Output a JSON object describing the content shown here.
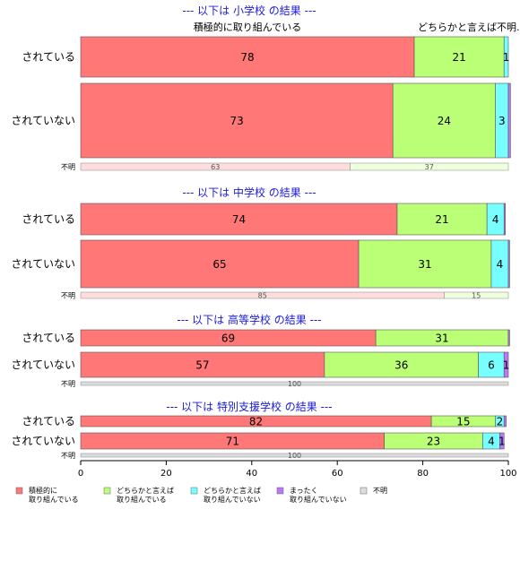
{
  "chart_data": {
    "type": "bar",
    "orientation": "horizontal",
    "stacked": true,
    "xlim": [
      0,
      100
    ],
    "x_ticks": [
      "0",
      "20",
      "40",
      "60",
      "80",
      "100"
    ],
    "top_labels": {
      "first": "積極的に取り組んでいる",
      "third": "どちらかと言えば",
      "fifth": "不明."
    },
    "legend": [
      {
        "label_lines": [
          "積極的に",
          "取り組んでいる"
        ],
        "color": "#ff7777"
      },
      {
        "label_lines": [
          "どちらかと言えば",
          "取り組んでいる"
        ],
        "color": "#bbff77"
      },
      {
        "label_lines": [
          "どちらかと言えば",
          "取り組んでいない"
        ],
        "color": "#77ffff"
      },
      {
        "label_lines": [
          "まったく",
          "取り組んでいない"
        ],
        "color": "#bb77ff"
      },
      {
        "label_lines": [
          "不明"
        ],
        "color": "#dddddd"
      }
    ],
    "panels": [
      {
        "title": "--- 以下は 小学校 の結果 ---",
        "bars": [
          {
            "category": "されている",
            "values": [
              78,
              21,
              1,
              0,
              0
            ],
            "labels": [
              "78",
              "21",
              "1",
              "",
              ""
            ]
          },
          {
            "category": "されていない",
            "values": [
              73,
              24,
              3,
              0.5,
              0
            ],
            "labels": [
              "73",
              "24",
              "3",
              "",
              ""
            ]
          }
        ],
        "unknown": {
          "category": "不明",
          "values": [
            63,
            37
          ],
          "labels": [
            "63",
            "37"
          ]
        }
      },
      {
        "title": "--- 以下は 中学校 の結果 ---",
        "bars": [
          {
            "category": "されている",
            "values": [
              74,
              21,
              4,
              0.3,
              0
            ],
            "labels": [
              "74",
              "21",
              "4",
              "",
              ""
            ]
          },
          {
            "category": "されていない",
            "values": [
              65,
              31,
              4,
              0.3,
              0
            ],
            "labels": [
              "65",
              "31",
              "4",
              "",
              ""
            ]
          }
        ],
        "unknown": {
          "category": "不明",
          "values": [
            85,
            15
          ],
          "labels": [
            "85",
            "15"
          ]
        }
      },
      {
        "title": "--- 以下は 高等学校 の結果 ---",
        "bars": [
          {
            "category": "されている",
            "values": [
              69,
              31,
              0,
              0.3,
              0
            ],
            "labels": [
              "69",
              "31",
              "",
              "",
              ""
            ]
          },
          {
            "category": "されていない",
            "values": [
              57,
              36,
              6,
              1,
              0
            ],
            "labels": [
              "57",
              "36",
              "6",
              "1",
              ""
            ]
          }
        ],
        "unknown": {
          "category": "不明",
          "values": [
            100
          ],
          "labels": [
            "100"
          ]
        }
      },
      {
        "title": "--- 以下は 特別支援学校 の結果 ---",
        "bars": [
          {
            "category": "されている",
            "values": [
              82,
              15,
              2,
              0.5,
              0
            ],
            "labels": [
              "82",
              "15",
              "2",
              "",
              ""
            ]
          },
          {
            "category": "されていない",
            "values": [
              71,
              23,
              4,
              1,
              0
            ],
            "labels": [
              "71",
              "23",
              "4",
              "1",
              ""
            ]
          }
        ],
        "unknown": {
          "category": "不明",
          "values": [
            100
          ],
          "labels": [
            "100"
          ]
        }
      }
    ]
  }
}
